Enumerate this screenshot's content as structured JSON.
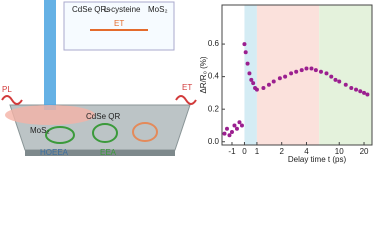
{
  "schematic": {
    "labels": {
      "qrs": "CdSe QRs",
      "linker": "L-cysteine",
      "mos2_top": "MoS₂",
      "et_top": "ET",
      "pl": "PL",
      "et_side": "ET",
      "qr": "CdSe QR",
      "mos2": "MoS₂",
      "hoeea": "HOEEA",
      "eea": "EEA"
    }
  },
  "chart_data": {
    "type": "scatter",
    "xlabel": "Delay time t (ps)",
    "ylabel": "ΔR/R₀ (%)",
    "xscale": "symlog",
    "linthresh": 1,
    "xlim": [
      -1.8,
      25
    ],
    "xticks": [
      -1,
      0,
      1,
      2,
      4,
      10,
      20
    ],
    "ylim": [
      -0.02,
      0.84
    ],
    "yticks": [
      {
        "value": 0,
        "label": "0.0"
      },
      {
        "value": 0.2,
        "label": "0.2"
      },
      {
        "value": 0.4,
        "label": "0.4"
      },
      {
        "value": 0.6,
        "label": "0.6"
      }
    ],
    "regions": [
      {
        "xlim": [
          0,
          1
        ],
        "color": "#d4ecf4"
      },
      {
        "xlim": [
          1,
          5.7
        ],
        "color": "#fbe1dc"
      },
      {
        "xlim": [
          5.7,
          25
        ],
        "color": "#e4f2dc"
      }
    ],
    "series": [
      {
        "color": "#9b1f8f",
        "x": [
          -1.6,
          -1.4,
          -1.2,
          -1.0,
          -0.8,
          -0.6,
          -0.4,
          -0.2,
          0,
          0.1,
          0.25,
          0.4,
          0.55,
          0.7,
          0.85,
          1.0,
          1.2,
          1.4,
          1.6,
          1.9,
          2.2,
          2.6,
          3.0,
          3.5,
          4.0,
          4.6,
          5.2,
          6,
          7,
          8,
          9,
          10,
          12,
          14,
          16,
          18,
          20,
          22
        ],
        "values": [
          0.05,
          0.08,
          0.04,
          0.06,
          0.1,
          0.08,
          0.12,
          0.1,
          0.6,
          0.55,
          0.48,
          0.42,
          0.38,
          0.36,
          0.33,
          0.32,
          0.33,
          0.35,
          0.37,
          0.39,
          0.4,
          0.42,
          0.43,
          0.44,
          0.45,
          0.45,
          0.44,
          0.43,
          0.42,
          0.4,
          0.38,
          0.37,
          0.35,
          0.33,
          0.32,
          0.31,
          0.3,
          0.29
        ]
      }
    ]
  }
}
